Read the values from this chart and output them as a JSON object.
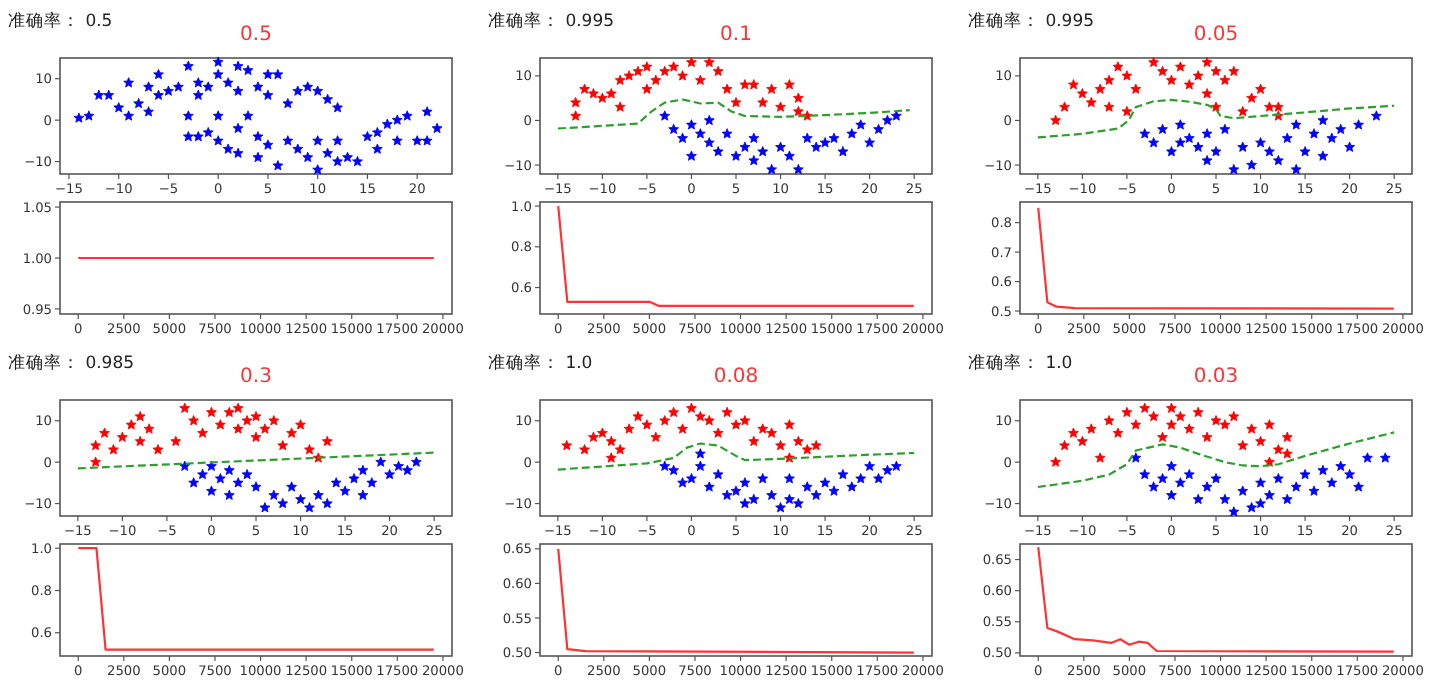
{
  "chart_data": [
    {
      "type": "scatter",
      "title": "0.5",
      "subtitle": "准确率：  0.5",
      "xlim": [
        -15.9,
        23.5
      ],
      "xticks": [
        {
          "value": -15,
          "label": "−15"
        },
        {
          "value": -10,
          "label": "−10"
        },
        {
          "value": -5,
          "label": "−5"
        },
        0,
        5,
        10,
        15,
        20
      ],
      "ylim": [
        -13,
        15
      ],
      "yticks": [
        {
          "value": -10,
          "label": "−10"
        },
        0,
        10
      ],
      "series": [
        {
          "marker": "star",
          "color": "#0000ff",
          "x": [
            -14,
            -13,
            -12,
            -11,
            -10,
            -9,
            -9,
            -8,
            -7,
            -7,
            -6,
            -6,
            -5,
            -4,
            -3,
            -3,
            -2,
            -2,
            -1,
            0,
            0,
            1,
            2,
            2,
            3,
            4,
            5,
            5,
            6,
            7,
            8,
            9,
            10,
            11,
            12,
            -3,
            -2,
            -1,
            0,
            0,
            1,
            2,
            2,
            3,
            4,
            4,
            5,
            6,
            7,
            8,
            9,
            10,
            10,
            11,
            12,
            12,
            13,
            14,
            15,
            16,
            17,
            18,
            19,
            20,
            21,
            22,
            21,
            16,
            18
          ],
          "values": [
            0.5,
            1,
            6,
            6,
            3,
            9,
            1,
            4,
            2,
            8,
            6,
            11,
            7,
            8,
            13,
            1,
            9,
            6,
            8,
            11,
            14,
            9,
            13,
            7,
            12,
            8,
            6,
            11,
            11,
            4,
            7,
            8,
            7,
            5,
            3,
            -4,
            -4,
            -3,
            -5,
            1,
            -7,
            -2,
            -8,
            1,
            -4,
            -9,
            -6,
            -11,
            -5,
            -7,
            -9,
            -12,
            -5,
            -8,
            -10,
            -5,
            -9,
            -10,
            -4,
            -7,
            -1,
            -5,
            1,
            -5,
            2,
            -2,
            -5,
            -3,
            0
          ]
        }
      ]
    },
    {
      "type": "line",
      "xlim": [
        -1000,
        20500
      ],
      "xticks": [
        0,
        2500,
        5000,
        7500,
        10000,
        12500,
        15000,
        17500,
        20000
      ],
      "ylim": [
        0.945,
        1.055
      ],
      "yticks": [
        {
          "value": 0.95,
          "label": "0.95"
        },
        {
          "value": 1.0,
          "label": "1.00"
        },
        {
          "value": 1.05,
          "label": "1.05"
        }
      ],
      "series": [
        {
          "line_style": "solid",
          "marker": "none",
          "color": "#ff3333",
          "x": [
            0,
            19500
          ],
          "values": [
            1.0,
            1.0
          ]
        }
      ]
    },
    {
      "type": "scatter",
      "title": "0.1",
      "subtitle": "准确率：  0.995",
      "xlim": [
        -17,
        27
      ],
      "xticks": [
        {
          "value": -15,
          "label": "−15"
        },
        {
          "value": -10,
          "label": "−10"
        },
        {
          "value": -5,
          "label": "−5"
        },
        0,
        5,
        10,
        15,
        20,
        25
      ],
      "ylim": [
        -12,
        14
      ],
      "yticks": [
        {
          "value": -10,
          "label": "−10"
        },
        0,
        10
      ],
      "series": [
        {
          "marker": "star",
          "color": "#ff0000",
          "x": [
            -13,
            -13,
            -12,
            -11,
            -10,
            -9,
            -8,
            -8,
            -7,
            -6,
            -5,
            -5,
            -4,
            -3,
            -2,
            -1,
            0,
            1,
            2,
            3,
            4,
            5,
            6,
            7,
            8,
            9,
            10,
            11,
            12,
            12,
            13
          ],
          "values": [
            1,
            4,
            7,
            6,
            5,
            6,
            3,
            9,
            10,
            11,
            12,
            7,
            9,
            11,
            12,
            10,
            13,
            9,
            13,
            11,
            7,
            4,
            8,
            8,
            4,
            7,
            3,
            8,
            2,
            5,
            1
          ]
        },
        {
          "marker": "star",
          "color": "#0000ff",
          "x": [
            -3,
            -2,
            -1,
            0,
            0,
            1,
            2,
            2,
            3,
            4,
            5,
            6,
            7,
            7,
            8,
            9,
            10,
            11,
            12,
            13,
            14,
            15,
            16,
            17,
            18,
            19,
            20,
            21,
            22,
            23
          ],
          "values": [
            1,
            -2,
            -4,
            -1,
            -8,
            -3,
            -5,
            0,
            -7,
            -3,
            -8,
            -6,
            -9,
            -4,
            -7,
            -11,
            -6,
            -8,
            -11,
            -4,
            -6,
            -5,
            -4,
            -7,
            -3,
            -1,
            -5,
            -2,
            0,
            1
          ]
        },
        {
          "type": "line",
          "marker": "none",
          "line_style": "dashed",
          "color": "#2ca02c",
          "x": [
            -15,
            -10,
            -6,
            -4.5,
            -3,
            -1,
            1,
            3,
            4.5,
            6,
            10,
            15,
            20,
            24.5
          ],
          "values": [
            -1.8,
            -1.2,
            -0.7,
            2,
            4,
            4.7,
            3.8,
            4,
            2,
            1,
            0.8,
            1.2,
            1.7,
            2.3
          ]
        }
      ]
    },
    {
      "type": "line",
      "xlim": [
        -1000,
        20500
      ],
      "xticks": [
        0,
        2500,
        5000,
        7500,
        10000,
        12500,
        15000,
        17500,
        20000
      ],
      "ylim": [
        0.47,
        1.02
      ],
      "yticks": [
        0.6,
        0.8,
        {
          "value": 1.0,
          "label": "1.0"
        }
      ],
      "series": [
        {
          "line_style": "solid",
          "marker": "none",
          "color": "#ff3333",
          "x": [
            0,
            500,
            1000,
            5000,
            5500,
            19500
          ],
          "values": [
            1.0,
            0.53,
            0.53,
            0.53,
            0.51,
            0.51
          ]
        }
      ]
    },
    {
      "type": "scatter",
      "title": "0.05",
      "subtitle": "准确率：  0.995",
      "xlim": [
        -17,
        27
      ],
      "xticks": [
        {
          "value": -15,
          "label": "−15"
        },
        {
          "value": -10,
          "label": "−10"
        },
        {
          "value": -5,
          "label": "−5"
        },
        0,
        5,
        10,
        15,
        20,
        25
      ],
      "ylim": [
        -12,
        14
      ],
      "yticks": [
        {
          "value": -10,
          "label": "−10"
        },
        0,
        10
      ],
      "series": [
        {
          "marker": "star",
          "color": "#ff0000",
          "x": [
            -13,
            -12,
            -11,
            -10,
            -9,
            -8,
            -7,
            -7,
            -6,
            -5,
            -5,
            -4,
            -2,
            -1,
            0,
            1,
            2,
            3,
            4,
            4,
            5,
            5,
            6,
            7,
            8,
            9,
            10,
            11,
            12,
            12
          ],
          "values": [
            0,
            3,
            8,
            6,
            4,
            7,
            9,
            3,
            12,
            10,
            2,
            7,
            13,
            11,
            9,
            12,
            8,
            10,
            13,
            6,
            11,
            3,
            9,
            11,
            2,
            5,
            7,
            3,
            1,
            3
          ]
        },
        {
          "marker": "star",
          "color": "#0000ff",
          "x": [
            -3,
            -2,
            -1,
            0,
            1,
            1,
            2,
            3,
            4,
            4,
            5,
            6,
            7,
            8,
            9,
            10,
            11,
            12,
            13,
            14,
            14,
            15,
            16,
            17,
            17,
            18,
            19,
            20,
            21,
            23
          ],
          "values": [
            -3,
            -5,
            -2,
            -7,
            -5,
            -1,
            -4,
            -6,
            -3,
            -9,
            -7,
            -2,
            -11,
            -6,
            -10,
            -5,
            -7,
            -9,
            -4,
            -11,
            -1,
            -7,
            -3,
            -8,
            0,
            -4,
            -2,
            -6,
            -1,
            1
          ]
        },
        {
          "type": "line",
          "marker": "none",
          "line_style": "dashed",
          "color": "#2ca02c",
          "x": [
            -15,
            -10,
            -6,
            -4.8,
            -4,
            -2,
            0,
            2,
            4,
            5,
            5.5,
            7,
            10,
            15,
            20,
            25
          ],
          "values": [
            -3.8,
            -3,
            -1.8,
            0,
            3,
            4.3,
            4.6,
            4.2,
            3.5,
            2.5,
            1,
            0.5,
            1,
            1.8,
            2.7,
            3.3
          ]
        }
      ]
    },
    {
      "type": "line",
      "xlim": [
        -1000,
        20500
      ],
      "xticks": [
        0,
        2500,
        5000,
        7500,
        10000,
        12500,
        15000,
        17500,
        20000
      ],
      "ylim": [
        0.49,
        0.87
      ],
      "yticks": [
        0.5,
        0.6,
        0.7,
        0.8
      ],
      "series": [
        {
          "line_style": "solid",
          "marker": "none",
          "color": "#ff3333",
          "x": [
            0,
            500,
            1000,
            2000,
            19500
          ],
          "values": [
            0.85,
            0.53,
            0.515,
            0.51,
            0.508
          ]
        }
      ]
    },
    {
      "type": "scatter",
      "title": "0.3",
      "subtitle": "准确率：  0.985",
      "xlim": [
        -17,
        27
      ],
      "xticks": [
        {
          "value": -15,
          "label": "−15"
        },
        {
          "value": -10,
          "label": "−10"
        },
        {
          "value": -5,
          "label": "−5"
        },
        0,
        5,
        10,
        15,
        20,
        25
      ],
      "ylim": [
        -13,
        15
      ],
      "yticks": [
        {
          "value": -10,
          "label": "−10"
        },
        0,
        10
      ],
      "series": [
        {
          "marker": "star",
          "color": "#ff0000",
          "x": [
            -13,
            -13,
            -12,
            -11,
            -10,
            -9,
            -8,
            -8,
            -7,
            -6,
            -4,
            -3,
            -2,
            -1,
            0,
            1,
            2,
            3,
            3,
            4,
            5,
            5,
            6,
            7,
            8,
            9,
            10,
            11,
            12,
            13
          ],
          "values": [
            0,
            4,
            7,
            3,
            6,
            9,
            11,
            5,
            8,
            3,
            5,
            13,
            10,
            7,
            12,
            9,
            12,
            8,
            13,
            10,
            6,
            11,
            8,
            10,
            4,
            7,
            9,
            3,
            1,
            5
          ]
        },
        {
          "marker": "star",
          "color": "#0000ff",
          "x": [
            -3,
            -2,
            -1,
            0,
            0,
            1,
            2,
            2,
            3,
            4,
            5,
            6,
            7,
            8,
            9,
            10,
            11,
            12,
            13,
            14,
            15,
            16,
            17,
            17,
            18,
            19,
            20,
            21,
            22,
            23
          ],
          "values": [
            -1,
            -5,
            -3,
            -7,
            -1,
            -4,
            -8,
            -2,
            -5,
            -3,
            -6,
            -11,
            -8,
            -10,
            -6,
            -9,
            -11,
            -8,
            -10,
            -5,
            -7,
            -4,
            -2,
            -8,
            -5,
            0,
            -3,
            -1,
            -2,
            0
          ]
        },
        {
          "type": "line",
          "marker": "none",
          "line_style": "dashed",
          "color": "#2ca02c",
          "x": [
            -15,
            25
          ],
          "values": [
            -1.5,
            2.3
          ]
        }
      ]
    },
    {
      "type": "line",
      "xlim": [
        -1000,
        20500
      ],
      "xticks": [
        0,
        2500,
        5000,
        7500,
        10000,
        12500,
        15000,
        17500,
        20000
      ],
      "ylim": [
        0.49,
        1.02
      ],
      "yticks": [
        0.6,
        0.8,
        {
          "value": 1.0,
          "label": "1.0"
        }
      ],
      "series": [
        {
          "line_style": "solid",
          "marker": "none",
          "color": "#ff3333",
          "x": [
            0,
            1000,
            1500,
            19500
          ],
          "values": [
            1.0,
            1.0,
            0.52,
            0.52
          ]
        }
      ]
    },
    {
      "type": "scatter",
      "title": "0.08",
      "subtitle": "准确率：  1.0",
      "xlim": [
        -17,
        27
      ],
      "xticks": [
        {
          "value": -15,
          "label": "−15"
        },
        {
          "value": -10,
          "label": "−10"
        },
        {
          "value": -5,
          "label": "−5"
        },
        0,
        5,
        10,
        15,
        20,
        25
      ],
      "ylim": [
        -13,
        15
      ],
      "yticks": [
        {
          "value": -10,
          "label": "−10"
        },
        0,
        10
      ],
      "series": [
        {
          "marker": "star",
          "color": "#ff0000",
          "x": [
            -14,
            -12,
            -11,
            -10,
            -9,
            -9,
            -8,
            -7,
            -6,
            -5,
            -4,
            -3,
            -2,
            -1,
            0,
            1,
            2,
            3,
            4,
            5,
            6,
            7,
            8,
            9,
            10,
            11,
            12,
            13,
            14,
            11
          ],
          "values": [
            4,
            3,
            6,
            7,
            5,
            1,
            3,
            8,
            11,
            9,
            6,
            10,
            12,
            8,
            13,
            11,
            10,
            7,
            12,
            9,
            10,
            5,
            8,
            7,
            4,
            9,
            5,
            3,
            4,
            1
          ]
        },
        {
          "marker": "star",
          "color": "#0000ff",
          "x": [
            -3,
            -2,
            -1,
            0,
            1,
            1,
            2,
            3,
            4,
            5,
            6,
            6,
            7,
            8,
            9,
            10,
            11,
            11,
            12,
            13,
            14,
            15,
            16,
            17,
            18,
            19,
            20,
            21,
            22,
            23
          ],
          "values": [
            -1,
            -2,
            -5,
            -4,
            -1,
            2,
            -6,
            -3,
            -8,
            -7,
            -10,
            -5,
            -9,
            -4,
            -8,
            -11,
            -9,
            -4,
            -10,
            -6,
            -8,
            -5,
            -7,
            -3,
            -6,
            -4,
            -1,
            -4,
            -2,
            -1
          ]
        },
        {
          "type": "line",
          "marker": "none",
          "line_style": "dashed",
          "color": "#2ca02c",
          "x": [
            -15,
            -5,
            -2,
            -0.5,
            1,
            3,
            5,
            6,
            10,
            15,
            20,
            25
          ],
          "values": [
            -1.8,
            -0.3,
            1,
            3.5,
            4.5,
            4,
            1.5,
            0.5,
            0.8,
            1.3,
            1.8,
            2.2
          ]
        }
      ]
    },
    {
      "type": "line",
      "xlim": [
        -1000,
        20500
      ],
      "xticks": [
        0,
        2500,
        5000,
        7500,
        10000,
        12500,
        15000,
        17500,
        20000
      ],
      "ylim": [
        0.495,
        0.657
      ],
      "yticks": [
        {
          "value": 0.5,
          "label": "0.50"
        },
        {
          "value": 0.55,
          "label": "0.55"
        },
        {
          "value": 0.6,
          "label": "0.60"
        },
        {
          "value": 0.65,
          "label": "0.65"
        }
      ],
      "series": [
        {
          "line_style": "solid",
          "marker": "none",
          "color": "#ff3333",
          "x": [
            0,
            500,
            1500,
            19500
          ],
          "values": [
            0.65,
            0.505,
            0.502,
            0.5
          ]
        }
      ]
    },
    {
      "type": "scatter",
      "title": "0.03",
      "subtitle": "准确率：  1.0",
      "xlim": [
        -17,
        27
      ],
      "xticks": [
        {
          "value": -15,
          "label": "−15"
        },
        {
          "value": -10,
          "label": "−10"
        },
        {
          "value": -5,
          "label": "−5"
        },
        0,
        5,
        10,
        15,
        20,
        25
      ],
      "ylim": [
        -13,
        15
      ],
      "yticks": [
        {
          "value": -10,
          "label": "−10"
        },
        0,
        10
      ],
      "series": [
        {
          "marker": "star",
          "color": "#ff0000",
          "x": [
            -13,
            -12,
            -11,
            -10,
            -9,
            -8,
            -7,
            -6,
            -5,
            -4,
            -3,
            -2,
            -1,
            0,
            0,
            1,
            2,
            3,
            4,
            5,
            6,
            7,
            8,
            9,
            10,
            11,
            12,
            13,
            11,
            13
          ],
          "values": [
            0,
            4,
            7,
            5,
            8,
            1,
            10,
            7,
            12,
            9,
            13,
            11,
            6,
            13,
            9,
            11,
            8,
            12,
            6,
            10,
            9,
            11,
            4,
            8,
            5,
            9,
            3,
            2,
            0,
            6
          ]
        },
        {
          "marker": "star",
          "color": "#0000ff",
          "x": [
            -4,
            -3,
            -2,
            -1,
            0,
            0,
            1,
            2,
            3,
            4,
            5,
            6,
            7,
            8,
            9,
            10,
            10,
            11,
            12,
            13,
            14,
            15,
            16,
            17,
            18,
            19,
            20,
            21,
            22,
            24
          ],
          "values": [
            1,
            -3,
            -6,
            -4,
            -8,
            -1,
            -5,
            -3,
            -9,
            -6,
            -4,
            -9,
            -12,
            -7,
            -11,
            -5,
            -10,
            -8,
            -4,
            -9,
            -6,
            -3,
            -7,
            -2,
            -5,
            -1,
            -3,
            -6,
            1,
            1
          ]
        },
        {
          "type": "line",
          "marker": "none",
          "line_style": "dashed",
          "color": "#2ca02c",
          "x": [
            -15,
            -10,
            -7,
            -5,
            -4,
            -1,
            1,
            3,
            6,
            8,
            10,
            12,
            15,
            20,
            25
          ],
          "values": [
            -6,
            -4.5,
            -3,
            -0.5,
            2.8,
            4.3,
            3.5,
            2,
            0,
            -0.8,
            -1,
            -0.5,
            1.5,
            4.5,
            7.2
          ]
        }
      ]
    },
    {
      "type": "line",
      "xlim": [
        -1000,
        20500
      ],
      "xticks": [
        0,
        2500,
        5000,
        7500,
        10000,
        12500,
        15000,
        17500,
        20000
      ],
      "ylim": [
        0.495,
        0.675
      ],
      "yticks": [
        {
          "value": 0.5,
          "label": "0.50"
        },
        {
          "value": 0.55,
          "label": "0.55"
        },
        {
          "value": 0.6,
          "label": "0.60"
        },
        {
          "value": 0.65,
          "label": "0.65"
        }
      ],
      "series": [
        {
          "line_style": "solid",
          "marker": "none",
          "color": "#ff3333",
          "x": [
            0,
            500,
            1000,
            2000,
            3000,
            4000,
            4500,
            5000,
            5500,
            6000,
            6500,
            19500
          ],
          "values": [
            0.67,
            0.54,
            0.535,
            0.522,
            0.52,
            0.516,
            0.522,
            0.513,
            0.518,
            0.516,
            0.503,
            0.502
          ]
        }
      ]
    }
  ]
}
